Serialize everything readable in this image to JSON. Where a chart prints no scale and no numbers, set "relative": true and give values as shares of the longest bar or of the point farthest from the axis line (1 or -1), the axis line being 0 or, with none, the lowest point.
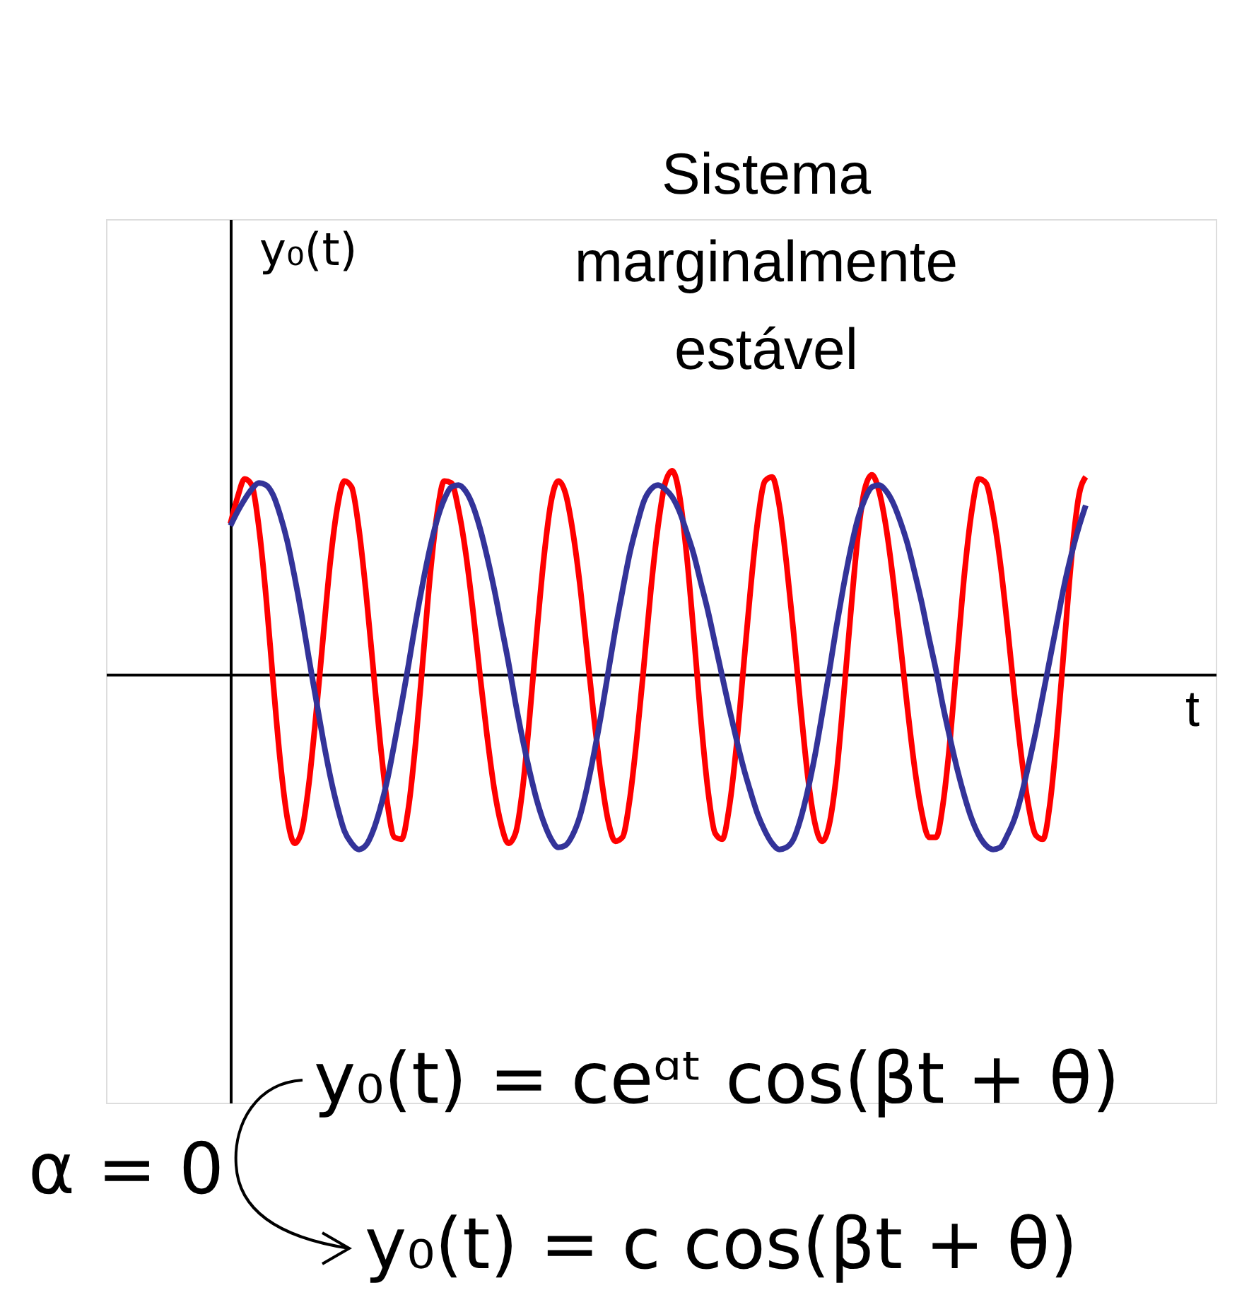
{
  "chart_data": {
    "type": "line",
    "relative": true,
    "xlabel": "t",
    "ylabel": "y₀(t)",
    "categories": [
      null,
      null,
      null,
      null,
      null,
      null,
      null,
      null,
      null,
      null,
      null,
      null,
      null,
      null,
      null,
      null,
      null,
      null,
      null,
      null,
      null,
      null,
      null,
      null,
      null,
      null,
      null,
      null,
      null,
      null,
      null,
      null,
      null,
      null,
      null,
      null,
      null,
      null,
      null,
      null,
      null,
      null,
      null,
      null,
      null,
      null,
      null,
      null,
      null,
      null,
      null,
      null,
      null,
      null,
      null,
      null,
      null,
      null,
      null,
      null,
      null,
      null,
      null,
      null,
      null,
      null,
      null,
      null,
      null,
      null,
      null,
      null,
      null,
      null,
      null,
      null,
      null,
      null,
      null,
      null,
      null,
      null,
      null,
      null,
      null,
      null,
      null,
      null,
      null,
      null,
      null,
      null,
      null,
      null,
      null,
      null,
      null,
      null,
      null,
      null,
      null,
      null,
      null,
      null,
      null,
      null,
      null,
      null,
      null,
      null,
      null,
      null,
      null,
      null,
      null,
      null,
      null,
      null,
      null,
      null,
      null
    ],
    "series": [
      {
        "color": "#ff0000",
        "values": [
          0.74,
          0.87,
          0.96,
          0.93,
          0.72,
          0.38,
          -0.04,
          -0.43,
          -0.71,
          -0.83,
          -0.77,
          -0.54,
          -0.2,
          0.18,
          0.55,
          0.82,
          0.95,
          0.92,
          0.72,
          0.41,
          0.04,
          -0.33,
          -0.63,
          -0.8,
          -0.81,
          -0.65,
          -0.33,
          0.07,
          0.48,
          0.79,
          0.95,
          0.94,
          0.81,
          0.6,
          0.32,
          0.0,
          -0.3,
          -0.56,
          -0.74,
          -0.83,
          -0.78,
          -0.56,
          -0.2,
          0.21,
          0.58,
          0.85,
          0.95,
          0.89,
          0.71,
          0.45,
          0.12,
          -0.21,
          -0.5,
          -0.72,
          -0.82,
          -0.8,
          -0.62,
          -0.32,
          0.04,
          0.42,
          0.73,
          0.94,
          1.0,
          0.88,
          0.59,
          0.2,
          -0.22,
          -0.57,
          -0.78,
          -0.81,
          -0.65,
          -0.35,
          0.04,
          0.43,
          0.76,
          0.95,
          0.97,
          0.83,
          0.55,
          0.21,
          -0.16,
          -0.5,
          -0.73,
          -0.82,
          -0.74,
          -0.5,
          -0.12,
          0.29,
          0.67,
          0.91,
          0.98,
          0.9,
          0.72,
          0.46,
          0.15,
          -0.17,
          -0.46,
          -0.68,
          -0.8,
          -0.8,
          -0.63,
          -0.31,
          0.1,
          0.5,
          0.8,
          0.96,
          0.94,
          0.79,
          0.55,
          0.24,
          -0.1,
          -0.41,
          -0.65,
          -0.79,
          -0.81,
          -0.63,
          -0.28,
          0.15,
          0.57,
          0.87,
          0.97
        ]
      },
      {
        "color": "#333399",
        "values": [
          0.73,
          0.8,
          0.86,
          0.91,
          0.94,
          0.93,
          0.88,
          0.78,
          0.65,
          0.48,
          0.29,
          0.08,
          -0.12,
          -0.32,
          -0.5,
          -0.65,
          -0.77,
          -0.83,
          -0.86,
          -0.84,
          -0.77,
          -0.66,
          -0.52,
          -0.34,
          -0.15,
          0.05,
          0.26,
          0.45,
          0.62,
          0.76,
          0.86,
          0.92,
          0.93,
          0.9,
          0.83,
          0.72,
          0.58,
          0.42,
          0.24,
          0.06,
          -0.14,
          -0.32,
          -0.48,
          -0.62,
          -0.73,
          -0.81,
          -0.85,
          -0.84,
          -0.79,
          -0.7,
          -0.56,
          -0.39,
          -0.2,
          0.01,
          0.22,
          0.41,
          0.59,
          0.73,
          0.85,
          0.91,
          0.93,
          0.91,
          0.87,
          0.8,
          0.7,
          0.59,
          0.45,
          0.31,
          0.15,
          -0.01,
          -0.17,
          -0.32,
          -0.46,
          -0.58,
          -0.69,
          -0.77,
          -0.83,
          -0.86,
          -0.85,
          -0.81,
          -0.71,
          -0.57,
          -0.4,
          -0.2,
          0.01,
          0.23,
          0.43,
          0.61,
          0.76,
          0.86,
          0.92,
          0.93,
          0.9,
          0.84,
          0.75,
          0.64,
          0.5,
          0.35,
          0.18,
          0.02,
          -0.16,
          -0.32,
          -0.47,
          -0.6,
          -0.71,
          -0.79,
          -0.84,
          -0.86,
          -0.85,
          -0.79,
          -0.71,
          -0.59,
          -0.44,
          -0.28,
          -0.1,
          0.08,
          0.26,
          0.44,
          0.59,
          0.72,
          0.83
        ]
      }
    ],
    "annotations": [
      "Sistema marginalmente estável",
      "y₀(t) = ceᵅᵗ cos(βt + θ)",
      "α = 0",
      "y₀(t) = c cos(βt + θ)"
    ]
  }
}
